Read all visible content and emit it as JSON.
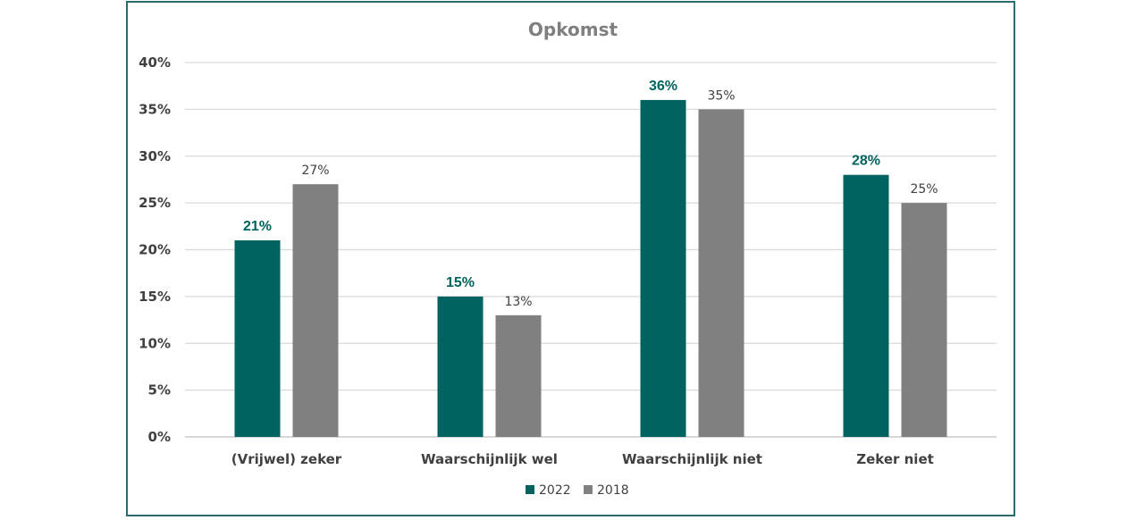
{
  "chart_data": {
    "type": "bar",
    "title": "Opkomst",
    "categories": [
      "(Vrijwel) zeker",
      "Waarschijnlijk wel",
      "Waarschijnlijk niet",
      "Zeker niet"
    ],
    "series": [
      {
        "name": "2022",
        "color": "#00635f",
        "values": [
          21,
          15,
          36,
          28
        ],
        "labels": [
          "21%",
          "15%",
          "36%",
          "28%"
        ]
      },
      {
        "name": "2018",
        "color": "#808080",
        "values": [
          27,
          13,
          35,
          25
        ],
        "labels": [
          "27%",
          "13%",
          "35%",
          "25%"
        ]
      }
    ],
    "ylim": [
      0,
      40
    ],
    "yticks": [
      "0%",
      "5%",
      "10%",
      "15%",
      "20%",
      "25%",
      "30%",
      "35%",
      "40%"
    ],
    "xlabel": "",
    "ylabel": "",
    "grid": true,
    "legend_position": "bottom"
  }
}
